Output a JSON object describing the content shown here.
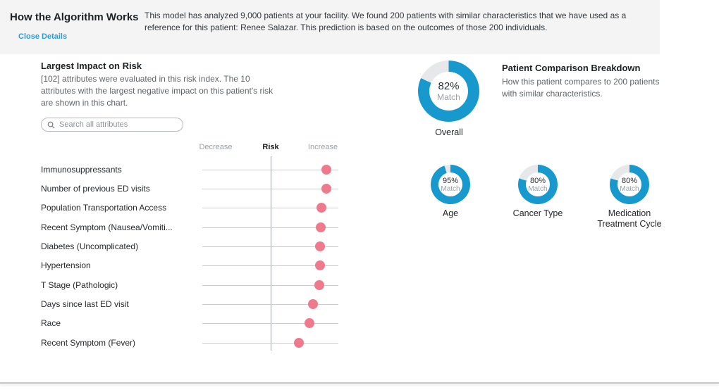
{
  "header": {
    "title": "How the Algorithm Works",
    "close_link": "Close Details",
    "description": "This model has analyzed 9,000 patients at your facility. We found 200 patients with similar characteristics that we have used as a reference for this patient: Renee Salazar. This prediction is based on the outcomes of those 200 individuals."
  },
  "impact": {
    "title": "Largest Impact on Risk",
    "description": "[102] attributes were evaluated in this risk index. The 10 attributes with the largest negative impact on this patient's risk are shown in this chart.",
    "search_placeholder": "Search all attributes"
  },
  "chart_data": {
    "type": "scatter",
    "title": "Largest Impact on Risk",
    "x_axis": {
      "left_label": "Decrease",
      "center_label": "Risk",
      "right_label": "Increase",
      "range": [
        -1,
        1
      ]
    },
    "rows": [
      {
        "label": "Immunosuppressants",
        "value": 0.82
      },
      {
        "label": "Number of previous ED visits",
        "value": 0.82
      },
      {
        "label": "Population Transportation Access",
        "value": 0.75
      },
      {
        "label": "Recent Symptom (Nausea/Vomiti...",
        "value": 0.74
      },
      {
        "label": "Diabetes (Uncomplicated)",
        "value": 0.73
      },
      {
        "label": "Hypertension",
        "value": 0.73
      },
      {
        "label": "T Stage (Pathologic)",
        "value": 0.72
      },
      {
        "label": "Days since last ED visit",
        "value": 0.63
      },
      {
        "label": "Race",
        "value": 0.57
      },
      {
        "label": "Recent Symptom (Fever)",
        "value": 0.42
      }
    ],
    "legend": "none",
    "grid": "per-row horizontal lines with center vertical Risk axis"
  },
  "comparison": {
    "title": "Patient Comparison Breakdown",
    "description": "How this patient compares to 200 patients with similar characteristics.",
    "match_label": "Match",
    "overall": {
      "label": "Overall",
      "percent": 82
    },
    "donuts": [
      {
        "label": "Age",
        "percent": 95
      },
      {
        "label": "Cancer Type",
        "percent": 80
      },
      {
        "label": "Medication Treatment Cycle",
        "percent": 80
      }
    ]
  },
  "colors": {
    "accent_blue": "#1899cd",
    "donut_track": "#e7e8e9",
    "dot_pink": "#ee7a8c",
    "link_blue": "#2b9cd8"
  }
}
